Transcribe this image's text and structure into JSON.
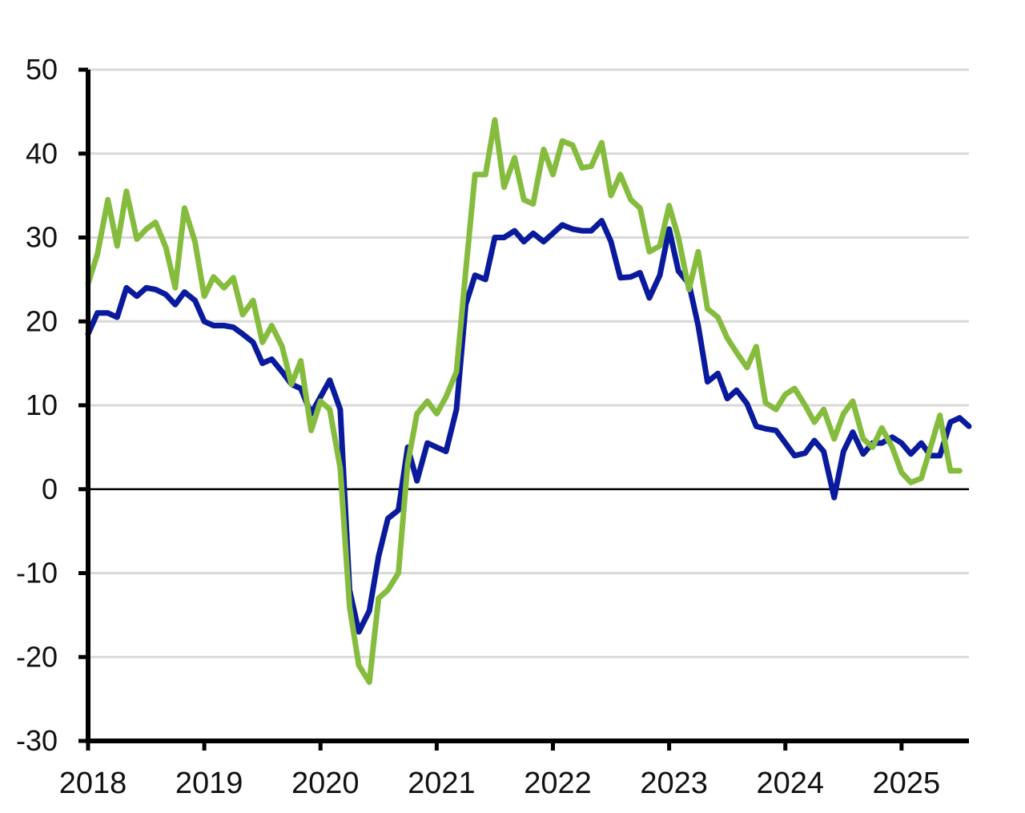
{
  "chart_data": {
    "type": "line",
    "title": "",
    "xlabel": "",
    "ylabel": "",
    "ylim": [
      -30,
      50
    ],
    "yticks": [
      -30,
      -20,
      -10,
      0,
      10,
      20,
      30,
      40,
      50
    ],
    "ytick_labels": [
      "-30",
      "-20",
      "-10",
      "0",
      "10",
      "20",
      "30",
      "40",
      "50"
    ],
    "xticks": [
      2018,
      2019,
      2020,
      2021,
      2022,
      2023,
      2024,
      2025
    ],
    "xtick_labels": [
      "2018",
      "2019",
      "2020",
      "2021",
      "2022",
      "2023",
      "2024",
      "2025"
    ],
    "xlim": [
      2018,
      2025.58
    ],
    "grid": true,
    "legend": "none",
    "series": [
      {
        "color": "#0a1a9c",
        "points": [
          [
            2018.0,
            18.5
          ],
          [
            2018.08,
            21.0
          ],
          [
            2018.17,
            21.0
          ],
          [
            2018.25,
            20.5
          ],
          [
            2018.33,
            24.0
          ],
          [
            2018.42,
            23.0
          ],
          [
            2018.5,
            24.0
          ],
          [
            2018.58,
            23.8
          ],
          [
            2018.67,
            23.2
          ],
          [
            2018.75,
            22.0
          ],
          [
            2018.83,
            23.5
          ],
          [
            2018.92,
            22.5
          ],
          [
            2019.0,
            20.0
          ],
          [
            2019.08,
            19.5
          ],
          [
            2019.17,
            19.5
          ],
          [
            2019.25,
            19.3
          ],
          [
            2019.33,
            18.5
          ],
          [
            2019.42,
            17.5
          ],
          [
            2019.5,
            15.0
          ],
          [
            2019.58,
            15.5
          ],
          [
            2019.67,
            14.0
          ],
          [
            2019.75,
            12.5
          ],
          [
            2019.83,
            12.0
          ],
          [
            2019.92,
            9.0
          ],
          [
            2020.0,
            11.0
          ],
          [
            2020.08,
            13.0
          ],
          [
            2020.17,
            9.5
          ],
          [
            2020.25,
            -12.0
          ],
          [
            2020.33,
            -17.0
          ],
          [
            2020.42,
            -14.5
          ],
          [
            2020.5,
            -8.0
          ],
          [
            2020.58,
            -3.5
          ],
          [
            2020.67,
            -2.5
          ],
          [
            2020.75,
            5.0
          ],
          [
            2020.83,
            1.0
          ],
          [
            2020.92,
            5.5
          ],
          [
            2021.0,
            5.0
          ],
          [
            2021.08,
            4.5
          ],
          [
            2021.17,
            9.5
          ],
          [
            2021.25,
            22.0
          ],
          [
            2021.33,
            25.5
          ],
          [
            2021.42,
            25.0
          ],
          [
            2021.5,
            30.0
          ],
          [
            2021.58,
            30.0
          ],
          [
            2021.67,
            30.8
          ],
          [
            2021.75,
            29.5
          ],
          [
            2021.83,
            30.5
          ],
          [
            2021.92,
            29.5
          ],
          [
            2022.0,
            30.5
          ],
          [
            2022.08,
            31.5
          ],
          [
            2022.17,
            31.0
          ],
          [
            2022.25,
            30.8
          ],
          [
            2022.33,
            30.8
          ],
          [
            2022.42,
            32.0
          ],
          [
            2022.5,
            29.5
          ],
          [
            2022.58,
            25.2
          ],
          [
            2022.67,
            25.3
          ],
          [
            2022.75,
            25.8
          ],
          [
            2022.83,
            22.8
          ],
          [
            2022.92,
            25.5
          ],
          [
            2023.0,
            31.0
          ],
          [
            2023.08,
            26.0
          ],
          [
            2023.17,
            24.5
          ],
          [
            2023.25,
            19.5
          ],
          [
            2023.33,
            12.8
          ],
          [
            2023.42,
            13.8
          ],
          [
            2023.5,
            10.8
          ],
          [
            2023.58,
            11.8
          ],
          [
            2023.67,
            10.2
          ],
          [
            2023.75,
            7.5
          ],
          [
            2023.83,
            7.2
          ],
          [
            2023.92,
            7.0
          ],
          [
            2024.0,
            5.5
          ],
          [
            2024.08,
            4.0
          ],
          [
            2024.17,
            4.3
          ],
          [
            2024.25,
            5.8
          ],
          [
            2024.33,
            4.5
          ],
          [
            2024.42,
            -1.0
          ],
          [
            2024.5,
            4.5
          ],
          [
            2024.58,
            6.8
          ],
          [
            2024.67,
            4.2
          ],
          [
            2024.75,
            5.5
          ],
          [
            2024.83,
            5.5
          ],
          [
            2024.92,
            6.2
          ],
          [
            2025.0,
            5.5
          ],
          [
            2025.08,
            4.2
          ],
          [
            2025.17,
            5.5
          ],
          [
            2025.25,
            4.0
          ],
          [
            2025.33,
            4.0
          ],
          [
            2025.42,
            8.0
          ],
          [
            2025.5,
            8.5
          ],
          [
            2025.58,
            7.5
          ]
        ]
      },
      {
        "color": "#86bc3e",
        "points": [
          [
            2018.0,
            24.5
          ],
          [
            2018.08,
            28.0
          ],
          [
            2018.17,
            34.5
          ],
          [
            2018.25,
            29.0
          ],
          [
            2018.33,
            35.5
          ],
          [
            2018.42,
            29.8
          ],
          [
            2018.5,
            31.0
          ],
          [
            2018.58,
            31.8
          ],
          [
            2018.67,
            28.8
          ],
          [
            2018.75,
            24.0
          ],
          [
            2018.83,
            33.5
          ],
          [
            2018.92,
            29.5
          ],
          [
            2019.0,
            23.0
          ],
          [
            2019.08,
            25.3
          ],
          [
            2019.17,
            24.0
          ],
          [
            2019.25,
            25.2
          ],
          [
            2019.33,
            20.8
          ],
          [
            2019.42,
            22.5
          ],
          [
            2019.5,
            17.5
          ],
          [
            2019.58,
            19.5
          ],
          [
            2019.67,
            17.0
          ],
          [
            2019.75,
            12.5
          ],
          [
            2019.83,
            15.3
          ],
          [
            2019.92,
            7.0
          ],
          [
            2020.0,
            10.5
          ],
          [
            2020.08,
            9.5
          ],
          [
            2020.17,
            2.5
          ],
          [
            2020.25,
            -14.0
          ],
          [
            2020.33,
            -21.0
          ],
          [
            2020.42,
            -23.0
          ],
          [
            2020.5,
            -13.0
          ],
          [
            2020.58,
            -12.0
          ],
          [
            2020.67,
            -10.0
          ],
          [
            2020.75,
            3.0
          ],
          [
            2020.83,
            9.0
          ],
          [
            2020.92,
            10.5
          ],
          [
            2021.0,
            9.0
          ],
          [
            2021.08,
            11.0
          ],
          [
            2021.17,
            14.0
          ],
          [
            2021.25,
            26.0
          ],
          [
            2021.33,
            37.5
          ],
          [
            2021.42,
            37.5
          ],
          [
            2021.5,
            44.0
          ],
          [
            2021.58,
            36.0
          ],
          [
            2021.67,
            39.5
          ],
          [
            2021.75,
            34.5
          ],
          [
            2021.83,
            34.0
          ],
          [
            2021.92,
            40.5
          ],
          [
            2022.0,
            37.5
          ],
          [
            2022.08,
            41.5
          ],
          [
            2022.17,
            41.0
          ],
          [
            2022.25,
            38.3
          ],
          [
            2022.33,
            38.5
          ],
          [
            2022.42,
            41.3
          ],
          [
            2022.5,
            35.0
          ],
          [
            2022.58,
            37.5
          ],
          [
            2022.67,
            34.5
          ],
          [
            2022.75,
            33.5
          ],
          [
            2022.83,
            28.3
          ],
          [
            2022.92,
            29.0
          ],
          [
            2023.0,
            33.8
          ],
          [
            2023.08,
            30.0
          ],
          [
            2023.17,
            23.8
          ],
          [
            2023.25,
            28.3
          ],
          [
            2023.33,
            21.5
          ],
          [
            2023.42,
            20.5
          ],
          [
            2023.5,
            18.0
          ],
          [
            2023.58,
            16.3
          ],
          [
            2023.67,
            14.5
          ],
          [
            2023.75,
            17.0
          ],
          [
            2023.83,
            10.3
          ],
          [
            2023.92,
            9.5
          ],
          [
            2024.0,
            11.3
          ],
          [
            2024.08,
            12.0
          ],
          [
            2024.17,
            10.0
          ],
          [
            2024.25,
            8.0
          ],
          [
            2024.33,
            9.5
          ],
          [
            2024.42,
            6.0
          ],
          [
            2024.5,
            9.0
          ],
          [
            2024.58,
            10.5
          ],
          [
            2024.67,
            6.0
          ],
          [
            2024.75,
            5.0
          ],
          [
            2024.83,
            7.3
          ],
          [
            2024.92,
            5.0
          ],
          [
            2025.0,
            2.0
          ],
          [
            2025.08,
            0.8
          ],
          [
            2025.17,
            1.3
          ],
          [
            2025.25,
            5.0
          ],
          [
            2025.33,
            8.8
          ],
          [
            2025.42,
            2.2
          ],
          [
            2025.5,
            2.2
          ]
        ]
      }
    ]
  }
}
